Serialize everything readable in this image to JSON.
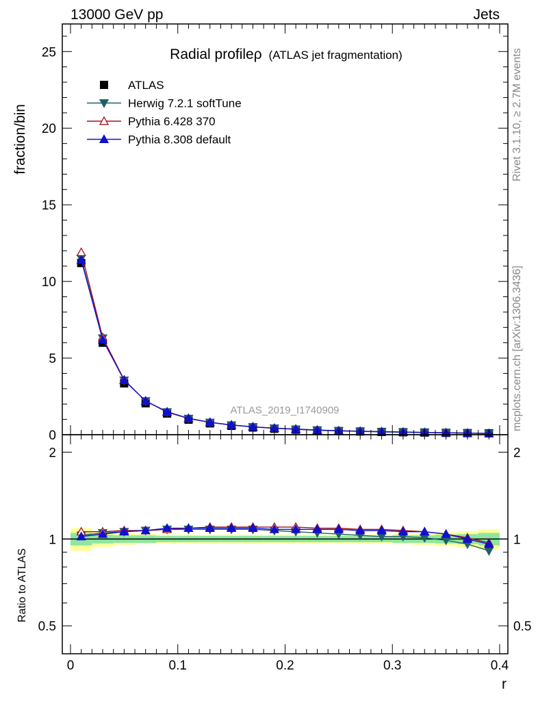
{
  "header": {
    "energy_label": "13000 GeV pp",
    "process_label": "Jets"
  },
  "side_labels": {
    "rivet": "Rivet 3.1.10, ≥ 2.7M events",
    "source": "mcplots.cern.ch [arXiv:1306.3436]"
  },
  "watermark": "ATLAS_2019_I1740909",
  "chart_data": {
    "type": "line",
    "title": "Radial profileρ",
    "subtitle": "(ATLAS jet fragmentation)",
    "xlabel": "r",
    "ylabel": "fraction/bin",
    "ratio_ylabel": "Ratio to ATLAS",
    "xlim": [
      0,
      0.4
    ],
    "ylim": [
      0,
      26.8
    ],
    "ratio_ylim": [
      0.4,
      2.3
    ],
    "x_ticks": [
      "0",
      "0.1",
      "0.2",
      "0.3",
      "0.4"
    ],
    "y_ticks": [
      "0",
      "5",
      "10",
      "15",
      "20",
      "25"
    ],
    "ratio_ticks": [
      "0.5",
      "1",
      "2"
    ],
    "legend_position": "top-left",
    "x": [
      0.01,
      0.03,
      0.05,
      0.07,
      0.09,
      0.11,
      0.13,
      0.15,
      0.17,
      0.19,
      0.21,
      0.23,
      0.25,
      0.27,
      0.29,
      0.31,
      0.33,
      0.35,
      0.37,
      0.39
    ],
    "series": [
      {
        "name": "ATLAS",
        "color": "#000000",
        "marker": "square",
        "values": [
          11.2,
          6.0,
          3.35,
          2.05,
          1.38,
          0.98,
          0.74,
          0.58,
          0.47,
          0.39,
          0.33,
          0.28,
          0.24,
          0.21,
          0.18,
          0.16,
          0.14,
          0.12,
          0.105,
          0.09
        ]
      },
      {
        "name": "Herwig 7.2.1 softTune",
        "color": "#1f5f66",
        "marker": "triangle-down",
        "values": [
          11.5,
          6.3,
          3.55,
          2.2,
          1.48,
          1.06,
          0.8,
          0.63,
          0.51,
          0.42,
          0.35,
          0.29,
          0.25,
          0.215,
          0.185,
          0.163,
          0.142,
          0.119,
          0.1,
          0.082
        ],
        "ratio": [
          1.03,
          1.05,
          1.06,
          1.07,
          1.08,
          1.08,
          1.08,
          1.08,
          1.08,
          1.07,
          1.06,
          1.05,
          1.04,
          1.03,
          1.02,
          1.02,
          1.01,
          0.99,
          0.96,
          0.91
        ]
      },
      {
        "name": "Pythia 6.428 370",
        "color": "#a0101a",
        "marker": "triangle-open",
        "values": [
          11.9,
          6.35,
          3.58,
          2.2,
          1.47,
          1.06,
          0.81,
          0.64,
          0.52,
          0.43,
          0.37,
          0.31,
          0.26,
          0.23,
          0.2,
          0.175,
          0.152,
          0.128,
          0.106,
          0.087
        ],
        "ratio": [
          1.06,
          1.06,
          1.07,
          1.07,
          1.08,
          1.09,
          1.1,
          1.1,
          1.1,
          1.1,
          1.1,
          1.09,
          1.09,
          1.08,
          1.08,
          1.07,
          1.06,
          1.04,
          1.01,
          0.97
        ]
      },
      {
        "name": "Pythia 8.308 default",
        "color": "#1010d0",
        "marker": "triangle-up",
        "values": [
          11.4,
          6.2,
          3.55,
          2.2,
          1.5,
          1.07,
          0.81,
          0.63,
          0.51,
          0.42,
          0.36,
          0.3,
          0.26,
          0.225,
          0.195,
          0.17,
          0.148,
          0.125,
          0.105,
          0.087
        ],
        "ratio": [
          1.02,
          1.04,
          1.06,
          1.07,
          1.09,
          1.09,
          1.09,
          1.09,
          1.09,
          1.08,
          1.08,
          1.08,
          1.08,
          1.07,
          1.07,
          1.06,
          1.06,
          1.04,
          1.0,
          0.96
        ]
      }
    ],
    "ratio_band_inner": [
      0.05,
      0.035,
      0.03,
      0.03,
      0.025,
      0.025,
      0.025,
      0.025,
      0.025,
      0.025,
      0.025,
      0.025,
      0.025,
      0.025,
      0.025,
      0.03,
      0.03,
      0.035,
      0.04,
      0.05
    ],
    "ratio_band_outer": [
      0.09,
      0.06,
      0.045,
      0.04,
      0.035,
      0.035,
      0.035,
      0.035,
      0.035,
      0.035,
      0.035,
      0.035,
      0.035,
      0.035,
      0.035,
      0.04,
      0.045,
      0.055,
      0.065,
      0.08
    ]
  }
}
